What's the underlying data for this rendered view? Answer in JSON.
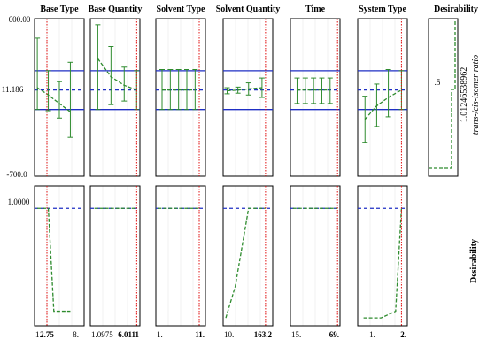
{
  "figure": {
    "type": "prediction-profiler",
    "colors": {
      "frame": "#000000",
      "mean_line": "#1f2fc4",
      "band_line": "#1f2fc4",
      "profile": "#2e8b2e",
      "error_bar": "#2e8b2e",
      "current_value": "#e01010",
      "desirability_target": "#1f2fc4",
      "grid": "#e6e6e6"
    },
    "top_y_ticks": [
      "600.00",
      "11.186",
      "-700.0"
    ],
    "top_y_range": [
      -700,
      600
    ],
    "bottom_y_ticks": [
      "1.0000"
    ],
    "bottom_y_range": [
      -0.05,
      1.2
    ],
    "top_row_label_value": "1.01246538962",
    "top_row_label_name": "trans-/cis-isomer ratio",
    "bottom_row_label": "Desirability",
    "desirability_col_title": "Desirability",
    "desirability_tick": ".5"
  },
  "chart_data": [
    {
      "type": "line",
      "factor": "Base Type",
      "title": "Base Type",
      "x_range": [
        0.5,
        9.5
      ],
      "x_ticks": [
        {
          "x": 1,
          "label": "1."
        },
        {
          "x": 8,
          "label": "8."
        }
      ],
      "current": {
        "x": 2.75,
        "label": "2.75"
      },
      "response_mean": 11.186,
      "band": [
        -150,
        170
      ],
      "profile": [
        {
          "x": 1,
          "y": 30,
          "lo": -150,
          "hi": 440
        },
        {
          "x": 3,
          "y": -30,
          "lo": -160,
          "hi": 170
        },
        {
          "x": 5,
          "y": -100,
          "lo": -220,
          "hi": 80
        },
        {
          "x": 7,
          "y": -170,
          "lo": -380,
          "hi": 240
        }
      ],
      "desirability": [
        {
          "x": 1,
          "y": 1.0
        },
        {
          "x": 2,
          "y": 1.0
        },
        {
          "x": 3,
          "y": 1.0
        },
        {
          "x": 4,
          "y": 0.08
        },
        {
          "x": 5,
          "y": 0.08
        },
        {
          "x": 6,
          "y": 0.08
        },
        {
          "x": 7,
          "y": 0.08
        }
      ]
    },
    {
      "type": "line",
      "factor": "Base Quantity",
      "title": "Base Quantity",
      "x_range": [
        0.4,
        6.4
      ],
      "x_ticks": [
        {
          "x": 1.0975,
          "label": "1.0975"
        }
      ],
      "current": {
        "x": 6.0111,
        "label": "6.0111"
      },
      "response_mean": 11.186,
      "band": [
        -150,
        170
      ],
      "profile": [
        {
          "x": 1.3,
          "y": 270,
          "lo": -150,
          "hi": 550
        },
        {
          "x": 2.9,
          "y": 120,
          "lo": -110,
          "hi": 370
        },
        {
          "x": 4.5,
          "y": 50,
          "lo": -80,
          "hi": 200
        },
        {
          "x": 6.0,
          "y": 11.186,
          "lo": -150,
          "hi": 170
        }
      ],
      "desirability": [
        {
          "x": 0.9,
          "y": 1.0
        },
        {
          "x": 6.0,
          "y": 1.0
        }
      ]
    },
    {
      "type": "line",
      "factor": "Solvent Type",
      "title": "Solvent Type",
      "x_range": [
        0.5,
        12.5
      ],
      "x_ticks": [
        {
          "x": 1,
          "label": "1."
        }
      ],
      "current": {
        "x": 11,
        "label": "11."
      },
      "response_mean": 11.186,
      "band": [
        -150,
        170
      ],
      "profile": [
        {
          "x": 2,
          "y": 11.186,
          "lo": -150,
          "hi": 180
        },
        {
          "x": 4,
          "y": 11.186,
          "lo": -150,
          "hi": 180
        },
        {
          "x": 6,
          "y": 11.186,
          "lo": -150,
          "hi": 180
        },
        {
          "x": 8,
          "y": 11.186,
          "lo": -150,
          "hi": 180
        },
        {
          "x": 10,
          "y": 11.186,
          "lo": -150,
          "hi": 180
        }
      ],
      "desirability": [
        {
          "x": 1,
          "y": 1.0
        },
        {
          "x": 11,
          "y": 1.0
        }
      ]
    },
    {
      "type": "line",
      "factor": "Solvent Quantity",
      "title": "Solvent Quantity",
      "x_range": [
        5,
        190
      ],
      "x_ticks": [
        {
          "x": 10,
          "label": "10."
        }
      ],
      "current": {
        "x": 163.2,
        "label": "163.2"
      },
      "response_mean": 11.186,
      "band": [
        -150,
        170
      ],
      "profile": [
        {
          "x": 20,
          "y": 5,
          "lo": -20,
          "hi": 30
        },
        {
          "x": 60,
          "y": 10,
          "lo": -15,
          "hi": 35
        },
        {
          "x": 100,
          "y": 20,
          "lo": -30,
          "hi": 70
        },
        {
          "x": 150,
          "y": 30,
          "lo": -50,
          "hi": 110
        }
      ],
      "desirability": [
        {
          "x": 15,
          "y": 0.02
        },
        {
          "x": 50,
          "y": 0.3
        },
        {
          "x": 100,
          "y": 1.0
        },
        {
          "x": 163.2,
          "y": 1.0
        }
      ]
    },
    {
      "type": "line",
      "factor": "Time",
      "title": "Time",
      "x_range": [
        12,
        72
      ],
      "x_ticks": [
        {
          "x": 15,
          "label": "15."
        }
      ],
      "current": {
        "x": 69,
        "label": "69."
      },
      "response_mean": 11.186,
      "band": [
        -150,
        170
      ],
      "profile": [
        {
          "x": 20,
          "y": 11.186,
          "lo": -100,
          "hi": 110
        },
        {
          "x": 30,
          "y": 11.186,
          "lo": -100,
          "hi": 110
        },
        {
          "x": 40,
          "y": 11.186,
          "lo": -100,
          "hi": 110
        },
        {
          "x": 50,
          "y": 11.186,
          "lo": -100,
          "hi": 110
        },
        {
          "x": 60,
          "y": 11.186,
          "lo": -100,
          "hi": 110
        }
      ],
      "desirability": [
        {
          "x": 15,
          "y": 1.0
        },
        {
          "x": 69,
          "y": 1.0
        }
      ]
    },
    {
      "type": "line",
      "factor": "System Type",
      "title": "System Type",
      "x_range": [
        0.5,
        2.2
      ],
      "x_ticks": [
        {
          "x": 1,
          "label": "1."
        }
      ],
      "current": {
        "x": 2,
        "label": "2."
      },
      "response_mean": 11.186,
      "band": [
        -150,
        170
      ],
      "profile": [
        {
          "x": 0.75,
          "y": -230,
          "lo": -420,
          "hi": -40
        },
        {
          "x": 1.15,
          "y": -120,
          "lo": -290,
          "hi": 60
        },
        {
          "x": 1.55,
          "y": -50,
          "lo": -210,
          "hi": 180
        },
        {
          "x": 2.0,
          "y": 11.186,
          "lo": -150,
          "hi": 170
        }
      ],
      "desirability": [
        {
          "x": 0.7,
          "y": 0.02
        },
        {
          "x": 1.3,
          "y": 0.02
        },
        {
          "x": 1.8,
          "y": 0.08
        },
        {
          "x": 2.0,
          "y": 1.0
        }
      ]
    }
  ]
}
